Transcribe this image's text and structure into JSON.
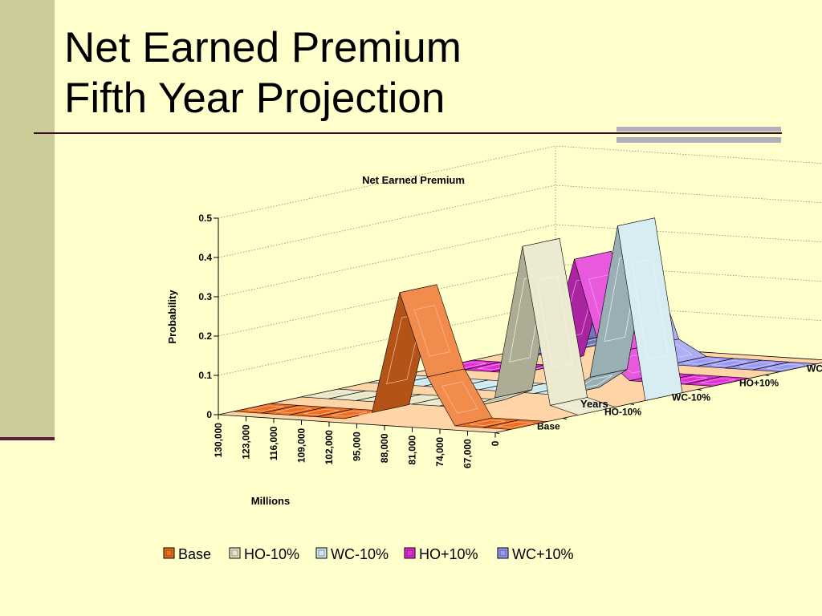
{
  "slide": {
    "title_line1": "Net Earned Premium",
    "title_line2": "Fifth Year Projection"
  },
  "chart_data": {
    "type": "area",
    "title": "Net Earned Premium",
    "ylabel": "Probability",
    "xlabel": "Millions",
    "zlabel": "Years",
    "ylim": [
      0,
      0.5
    ],
    "y_ticks": [
      "0",
      "0.1",
      "0.2",
      "0.3",
      "0.4",
      "0.5"
    ],
    "categories": [
      "130,000",
      "123,000",
      "116,000",
      "109,000",
      "102,000",
      "95,000",
      "88,000",
      "81,000",
      "74,000",
      "67,000",
      "0"
    ],
    "series": [
      {
        "name": "Base",
        "color": "#ee6f20",
        "values": [
          0,
          0,
          0,
          0,
          0,
          0.02,
          0.33,
          0.12,
          0,
          0,
          0
        ]
      },
      {
        "name": "HO-10%",
        "color": "#e7e6c6",
        "values": [
          0,
          0,
          0,
          0,
          0,
          0,
          0,
          0.03,
          0.42,
          0.02,
          0
        ]
      },
      {
        "name": "WC-10%",
        "color": "#cde9ee",
        "values": [
          0,
          0,
          0,
          0,
          0,
          0,
          0,
          0,
          0.05,
          0.44,
          0
        ]
      },
      {
        "name": "HO+10%",
        "color": "#e22fd6",
        "values": [
          0,
          0,
          0,
          0,
          0.03,
          0.3,
          0.06,
          0,
          0,
          0,
          0
        ]
      },
      {
        "name": "WC+10%",
        "color": "#9a9af3",
        "values": [
          0,
          0,
          0.01,
          0.05,
          0.24,
          0.04,
          0,
          0,
          0,
          0,
          0
        ]
      }
    ],
    "legend_position": "bottom",
    "grid": true
  }
}
